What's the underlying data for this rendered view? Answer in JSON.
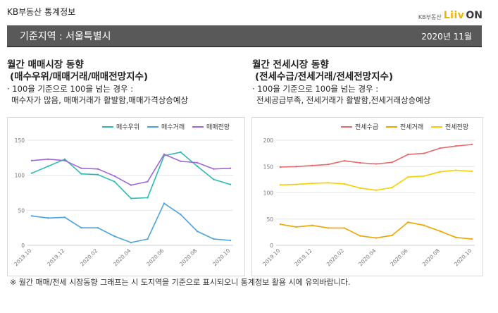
{
  "header": {
    "brand_title": "KB부동산 통계정보",
    "logo_kb": "KB부동산",
    "logo_liiv": "Liiv",
    "logo_on": "ON",
    "region_label": "기준지역 : 서울특별시",
    "date": "2020년 11월"
  },
  "left_panel": {
    "title": "월간 매매시장 동향",
    "subtitle": "(매수우위/매매거래/매매전망지수)",
    "note1": "· 100을 기준으로 100을 넘는 경우 :",
    "note2": "매수자가 많음, 매매거래가 활발함,매매가격상승예상"
  },
  "right_panel": {
    "title": "월간 전세시장 동향",
    "subtitle": "(전세수급/전세거래/전세전망지수)",
    "note1": "· 100을 기준으로 100을 넘는 경우 :",
    "note2": "전세공급부족, 전세거래가 활발함,전세거래상승예상"
  },
  "footnote": "※ 월간 매매/전세 시장동향 그래프는 시 도지역을 기준으로 표시되오니 통계정보 활용 시에 유의바랍니다.",
  "chart_data": [
    {
      "type": "line",
      "categories": [
        "2019.10",
        "2019.11",
        "2019.12",
        "2020.01",
        "2020.02",
        "2020.03",
        "2020.04",
        "2020.05",
        "2020.06",
        "2020.07",
        "2020.08",
        "2020.09",
        "2020.10"
      ],
      "x_tick_labels": [
        "2019.10",
        "2019.12",
        "2020.02",
        "2020.04",
        "2020.06",
        "2020.08",
        "2020.10"
      ],
      "ylim": [
        0,
        150
      ],
      "yticks": [
        0,
        50,
        100,
        150
      ],
      "grid": true,
      "legend_position": "top-right",
      "series": [
        {
          "name": "매수우위",
          "color": "#2bbbb3",
          "values": [
            103,
            113,
            123,
            102,
            101,
            91,
            67,
            68,
            128,
            133,
            113,
            94,
            87
          ]
        },
        {
          "name": "매수거래",
          "color": "#4aa3df",
          "values": [
            42,
            39,
            40,
            25,
            25,
            13,
            4,
            9,
            60,
            44,
            20,
            9,
            7
          ]
        },
        {
          "name": "매매전망",
          "color": "#a066d8",
          "values": [
            121,
            123,
            121,
            110,
            109,
            99,
            86,
            91,
            130,
            120,
            118,
            109,
            110
          ]
        }
      ]
    },
    {
      "type": "line",
      "categories": [
        "2019.10",
        "2019.11",
        "2019.12",
        "2020.01",
        "2020.02",
        "2020.03",
        "2020.04",
        "2020.05",
        "2020.06",
        "2020.07",
        "2020.08",
        "2020.09",
        "2020.10"
      ],
      "x_tick_labels": [
        "2019.10",
        "2019.12",
        "2020.02",
        "2020.04",
        "2020.06",
        "2020.08",
        "2020.10"
      ],
      "ylim": [
        0,
        200
      ],
      "yticks": [
        0,
        50,
        100,
        150,
        200
      ],
      "grid": true,
      "legend_position": "top-right",
      "series": [
        {
          "name": "전세수급",
          "color": "#e8676b",
          "values": [
            149,
            150,
            152,
            154,
            161,
            157,
            155,
            158,
            173,
            175,
            185,
            189,
            192
          ]
        },
        {
          "name": "전세거래",
          "color": "#f0a500",
          "values": [
            40,
            35,
            38,
            33,
            33,
            18,
            14,
            19,
            44,
            38,
            27,
            15,
            12
          ]
        },
        {
          "name": "전세전망",
          "color": "#f5d000",
          "values": [
            115,
            116,
            118,
            119,
            117,
            109,
            105,
            110,
            130,
            132,
            140,
            143,
            141
          ]
        }
      ]
    }
  ]
}
